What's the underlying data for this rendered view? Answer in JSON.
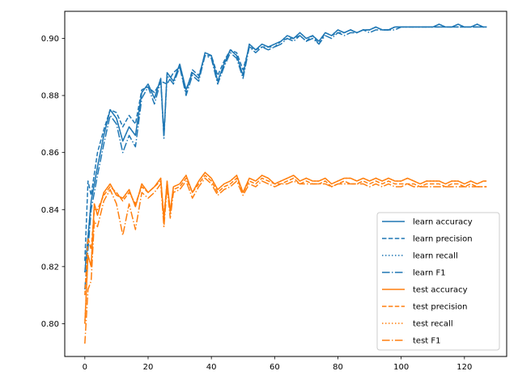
{
  "chart_data": {
    "type": "line",
    "title": "",
    "xlabel": "",
    "ylabel": "",
    "xlim": [
      -6.35,
      133.35
    ],
    "ylim": [
      0.7885,
      0.9095
    ],
    "xticks": [
      0,
      20,
      40,
      60,
      80,
      100,
      120
    ],
    "yticks": [
      0.8,
      0.82,
      0.84,
      0.86,
      0.88,
      0.9
    ],
    "ytick_labels": [
      "0.80",
      "0.82",
      "0.84",
      "0.86",
      "0.88",
      "0.90"
    ],
    "grid": false,
    "legend_position": "lower-right",
    "colors": {
      "learn": "#1f77b4",
      "test": "#ff7f0e"
    },
    "series": [
      {
        "name": "learn accuracy",
        "group": "learn",
        "style": "solid",
        "x": [
          0,
          2,
          4,
          6,
          8,
          10,
          12,
          14,
          16,
          18,
          20,
          22,
          24,
          25,
          26,
          28,
          30,
          32,
          34,
          36,
          38,
          40,
          42,
          44,
          46,
          48,
          50,
          52,
          54,
          56,
          58,
          60,
          62,
          64,
          66,
          68,
          70,
          72,
          74,
          76,
          78,
          80,
          82,
          84,
          86,
          88,
          90,
          92,
          94,
          96,
          98,
          100,
          102,
          104,
          106,
          108,
          110,
          112,
          114,
          116,
          118,
          120,
          122,
          124,
          126,
          127
        ],
        "y": [
          0.818,
          0.843,
          0.855,
          0.866,
          0.875,
          0.872,
          0.864,
          0.869,
          0.866,
          0.881,
          0.884,
          0.879,
          0.886,
          0.866,
          0.888,
          0.885,
          0.891,
          0.882,
          0.888,
          0.886,
          0.895,
          0.894,
          0.885,
          0.891,
          0.896,
          0.894,
          0.887,
          0.898,
          0.896,
          0.898,
          0.897,
          0.898,
          0.899,
          0.901,
          0.9,
          0.902,
          0.9,
          0.901,
          0.899,
          0.902,
          0.901,
          0.903,
          0.902,
          0.903,
          0.902,
          0.903,
          0.903,
          0.904,
          0.903,
          0.903,
          0.904,
          0.904,
          0.904,
          0.904,
          0.904,
          0.904,
          0.904,
          0.905,
          0.904,
          0.904,
          0.905,
          0.904,
          0.904,
          0.905,
          0.904,
          0.904
        ]
      },
      {
        "name": "learn precision",
        "group": "learn",
        "style": "dashed",
        "x": [
          0,
          1,
          2,
          4,
          6,
          8,
          10,
          12,
          14,
          16,
          18,
          20,
          22,
          24,
          26,
          28,
          30,
          32,
          34,
          36,
          38,
          40,
          42,
          44,
          46,
          48,
          50,
          52,
          54,
          56,
          58,
          60,
          62,
          64,
          66,
          68,
          70,
          72,
          74,
          76,
          78,
          80,
          82,
          84,
          86,
          88,
          90,
          92,
          94,
          96,
          98,
          100,
          102,
          104,
          106,
          108,
          110,
          112,
          114,
          116,
          118,
          120,
          122,
          124,
          126,
          127
        ],
        "y": [
          0.822,
          0.85,
          0.845,
          0.86,
          0.868,
          0.875,
          0.874,
          0.869,
          0.873,
          0.87,
          0.882,
          0.883,
          0.881,
          0.885,
          0.884,
          0.888,
          0.89,
          0.881,
          0.889,
          0.887,
          0.894,
          0.894,
          0.887,
          0.892,
          0.896,
          0.895,
          0.889,
          0.897,
          0.896,
          0.897,
          0.897,
          0.897,
          0.899,
          0.9,
          0.9,
          0.901,
          0.899,
          0.901,
          0.898,
          0.902,
          0.901,
          0.902,
          0.902,
          0.903,
          0.902,
          0.903,
          0.903,
          0.904,
          0.903,
          0.903,
          0.904,
          0.904,
          0.904,
          0.904,
          0.904,
          0.904,
          0.904,
          0.904,
          0.904,
          0.904,
          0.904,
          0.904,
          0.904,
          0.904,
          0.904,
          0.904
        ]
      },
      {
        "name": "learn recall",
        "group": "learn",
        "style": "dotted",
        "x": [
          0,
          2,
          4,
          6,
          8,
          10,
          12,
          14,
          16,
          18,
          20,
          22,
          24,
          25,
          26,
          28,
          30,
          32,
          34,
          36,
          38,
          40,
          42,
          44,
          46,
          48,
          50,
          52,
          54,
          56,
          58,
          60,
          62,
          64,
          66,
          68,
          70,
          72,
          74,
          76,
          78,
          80,
          82,
          84,
          86,
          88,
          90,
          92,
          94,
          96,
          98,
          100,
          102,
          104,
          106,
          108,
          110,
          112,
          114,
          116,
          118,
          120,
          122,
          124,
          126,
          127
        ],
        "y": [
          0.818,
          0.843,
          0.855,
          0.866,
          0.875,
          0.872,
          0.864,
          0.869,
          0.866,
          0.881,
          0.884,
          0.879,
          0.886,
          0.866,
          0.888,
          0.885,
          0.891,
          0.882,
          0.888,
          0.886,
          0.895,
          0.894,
          0.885,
          0.891,
          0.896,
          0.894,
          0.887,
          0.898,
          0.896,
          0.898,
          0.897,
          0.898,
          0.899,
          0.901,
          0.9,
          0.902,
          0.9,
          0.901,
          0.899,
          0.902,
          0.901,
          0.903,
          0.902,
          0.903,
          0.902,
          0.903,
          0.903,
          0.904,
          0.903,
          0.903,
          0.904,
          0.904,
          0.904,
          0.904,
          0.904,
          0.904,
          0.904,
          0.905,
          0.904,
          0.904,
          0.905,
          0.904,
          0.904,
          0.905,
          0.904,
          0.904
        ]
      },
      {
        "name": "learn F1",
        "group": "learn",
        "style": "dashdot",
        "x": [
          0,
          2,
          4,
          6,
          8,
          10,
          12,
          14,
          16,
          18,
          20,
          22,
          24,
          25,
          26,
          28,
          30,
          32,
          34,
          36,
          38,
          40,
          42,
          44,
          46,
          48,
          50,
          52,
          54,
          56,
          58,
          60,
          62,
          64,
          66,
          68,
          70,
          72,
          74,
          76,
          78,
          80,
          82,
          84,
          86,
          88,
          90,
          92,
          94,
          96,
          98,
          100,
          102,
          104,
          106,
          108,
          110,
          112,
          114,
          116,
          118,
          120,
          122,
          124,
          126,
          127
        ],
        "y": [
          0.812,
          0.84,
          0.852,
          0.863,
          0.873,
          0.87,
          0.86,
          0.866,
          0.862,
          0.879,
          0.883,
          0.877,
          0.885,
          0.865,
          0.887,
          0.884,
          0.89,
          0.88,
          0.887,
          0.885,
          0.894,
          0.893,
          0.884,
          0.89,
          0.895,
          0.893,
          0.886,
          0.897,
          0.895,
          0.897,
          0.896,
          0.897,
          0.898,
          0.9,
          0.899,
          0.901,
          0.899,
          0.9,
          0.898,
          0.901,
          0.9,
          0.902,
          0.901,
          0.902,
          0.902,
          0.903,
          0.902,
          0.903,
          0.903,
          0.903,
          0.903,
          0.904,
          0.904,
          0.904,
          0.904,
          0.904,
          0.904,
          0.904,
          0.904,
          0.904,
          0.904,
          0.904,
          0.904,
          0.904,
          0.904,
          0.904
        ]
      },
      {
        "name": "test accuracy",
        "group": "test",
        "style": "solid",
        "x": [
          0,
          1,
          2,
          3,
          4,
          6,
          8,
          10,
          12,
          14,
          16,
          18,
          20,
          22,
          24,
          25,
          26,
          27,
          28,
          30,
          32,
          34,
          36,
          38,
          40,
          42,
          44,
          46,
          48,
          50,
          52,
          54,
          56,
          58,
          60,
          62,
          64,
          66,
          68,
          70,
          72,
          74,
          76,
          78,
          80,
          82,
          84,
          86,
          88,
          90,
          92,
          94,
          96,
          98,
          100,
          102,
          104,
          106,
          108,
          110,
          112,
          114,
          116,
          118,
          120,
          122,
          124,
          126,
          127
        ],
        "y": [
          0.8,
          0.824,
          0.82,
          0.842,
          0.838,
          0.846,
          0.849,
          0.845,
          0.844,
          0.847,
          0.841,
          0.849,
          0.846,
          0.848,
          0.851,
          0.836,
          0.85,
          0.839,
          0.848,
          0.849,
          0.852,
          0.846,
          0.85,
          0.853,
          0.851,
          0.847,
          0.849,
          0.85,
          0.852,
          0.846,
          0.851,
          0.85,
          0.852,
          0.851,
          0.849,
          0.85,
          0.851,
          0.852,
          0.85,
          0.851,
          0.85,
          0.85,
          0.851,
          0.849,
          0.85,
          0.851,
          0.851,
          0.85,
          0.851,
          0.85,
          0.851,
          0.85,
          0.851,
          0.85,
          0.85,
          0.851,
          0.85,
          0.849,
          0.85,
          0.85,
          0.85,
          0.849,
          0.85,
          0.85,
          0.849,
          0.85,
          0.849,
          0.85,
          0.85
        ]
      },
      {
        "name": "test precision",
        "group": "test",
        "style": "dashed",
        "x": [
          0,
          1,
          2,
          3,
          4,
          6,
          8,
          10,
          12,
          14,
          16,
          18,
          20,
          22,
          24,
          25,
          26,
          27,
          28,
          30,
          32,
          34,
          36,
          38,
          40,
          42,
          44,
          46,
          48,
          50,
          52,
          54,
          56,
          58,
          60,
          62,
          64,
          66,
          68,
          70,
          72,
          74,
          76,
          78,
          80,
          82,
          84,
          86,
          88,
          90,
          92,
          94,
          96,
          98,
          100,
          102,
          104,
          106,
          108,
          110,
          112,
          114,
          116,
          118,
          120,
          122,
          124,
          126,
          127
        ],
        "y": [
          0.81,
          0.83,
          0.826,
          0.84,
          0.84,
          0.845,
          0.848,
          0.846,
          0.843,
          0.846,
          0.842,
          0.848,
          0.846,
          0.848,
          0.85,
          0.838,
          0.849,
          0.84,
          0.847,
          0.848,
          0.851,
          0.846,
          0.849,
          0.852,
          0.85,
          0.846,
          0.848,
          0.849,
          0.851,
          0.846,
          0.85,
          0.849,
          0.851,
          0.85,
          0.849,
          0.849,
          0.85,
          0.851,
          0.849,
          0.85,
          0.849,
          0.849,
          0.85,
          0.848,
          0.849,
          0.85,
          0.849,
          0.849,
          0.85,
          0.849,
          0.85,
          0.849,
          0.85,
          0.849,
          0.849,
          0.849,
          0.849,
          0.848,
          0.849,
          0.849,
          0.849,
          0.848,
          0.849,
          0.849,
          0.848,
          0.849,
          0.848,
          0.848,
          0.848
        ]
      },
      {
        "name": "test recall",
        "group": "test",
        "style": "dotted",
        "x": [
          0,
          1,
          2,
          3,
          4,
          6,
          8,
          10,
          12,
          14,
          16,
          18,
          20,
          22,
          24,
          25,
          26,
          27,
          28,
          30,
          32,
          34,
          36,
          38,
          40,
          42,
          44,
          46,
          48,
          50,
          52,
          54,
          56,
          58,
          60,
          62,
          64,
          66,
          68,
          70,
          72,
          74,
          76,
          78,
          80,
          82,
          84,
          86,
          88,
          90,
          92,
          94,
          96,
          98,
          100,
          102,
          104,
          106,
          108,
          110,
          112,
          114,
          116,
          118,
          120,
          122,
          124,
          126,
          127
        ],
        "y": [
          0.8,
          0.824,
          0.82,
          0.842,
          0.838,
          0.846,
          0.849,
          0.845,
          0.844,
          0.847,
          0.841,
          0.849,
          0.846,
          0.848,
          0.851,
          0.836,
          0.85,
          0.839,
          0.848,
          0.849,
          0.852,
          0.846,
          0.85,
          0.853,
          0.851,
          0.847,
          0.849,
          0.85,
          0.852,
          0.846,
          0.851,
          0.85,
          0.852,
          0.851,
          0.849,
          0.85,
          0.851,
          0.852,
          0.85,
          0.851,
          0.85,
          0.85,
          0.851,
          0.849,
          0.85,
          0.851,
          0.851,
          0.85,
          0.851,
          0.85,
          0.851,
          0.85,
          0.851,
          0.85,
          0.85,
          0.851,
          0.85,
          0.849,
          0.85,
          0.85,
          0.85,
          0.849,
          0.85,
          0.85,
          0.849,
          0.85,
          0.849,
          0.85,
          0.85
        ]
      },
      {
        "name": "test F1",
        "group": "test",
        "style": "dashdot",
        "x": [
          0,
          1,
          2,
          3,
          4,
          6,
          8,
          10,
          12,
          14,
          16,
          18,
          20,
          22,
          24,
          25,
          26,
          27,
          28,
          30,
          32,
          34,
          36,
          38,
          40,
          42,
          44,
          46,
          48,
          50,
          52,
          54,
          56,
          58,
          60,
          62,
          64,
          66,
          68,
          70,
          72,
          74,
          76,
          78,
          80,
          82,
          84,
          86,
          88,
          90,
          92,
          94,
          96,
          98,
          100,
          102,
          104,
          106,
          108,
          110,
          112,
          114,
          116,
          118,
          120,
          122,
          124,
          126,
          127
        ],
        "y": [
          0.793,
          0.812,
          0.815,
          0.836,
          0.834,
          0.843,
          0.847,
          0.842,
          0.831,
          0.842,
          0.833,
          0.846,
          0.844,
          0.846,
          0.849,
          0.834,
          0.848,
          0.837,
          0.846,
          0.847,
          0.85,
          0.844,
          0.848,
          0.851,
          0.849,
          0.845,
          0.847,
          0.848,
          0.85,
          0.845,
          0.849,
          0.848,
          0.85,
          0.849,
          0.848,
          0.849,
          0.849,
          0.85,
          0.849,
          0.849,
          0.849,
          0.849,
          0.849,
          0.848,
          0.849,
          0.849,
          0.849,
          0.849,
          0.849,
          0.848,
          0.849,
          0.848,
          0.849,
          0.848,
          0.848,
          0.849,
          0.848,
          0.848,
          0.848,
          0.848,
          0.848,
          0.848,
          0.848,
          0.848,
          0.848,
          0.848,
          0.848,
          0.848,
          0.848
        ]
      }
    ]
  }
}
